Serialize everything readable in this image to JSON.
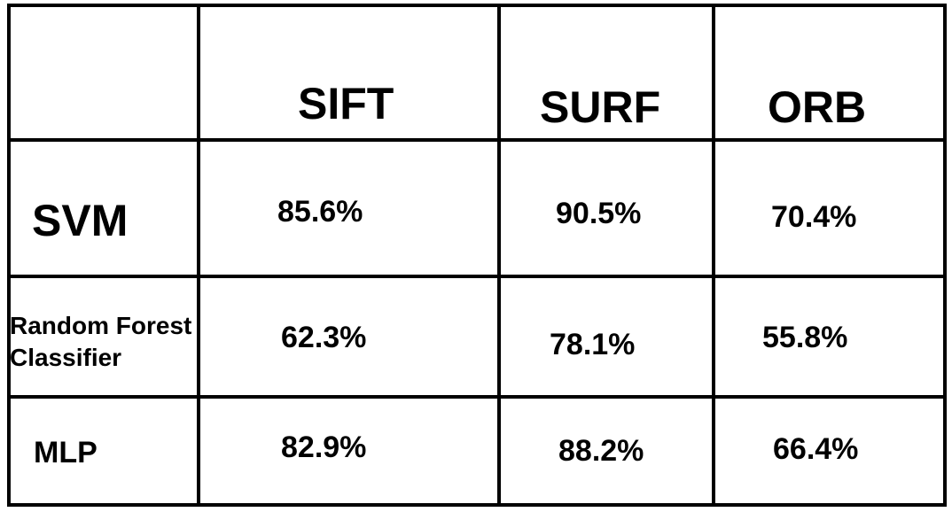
{
  "chart_data": {
    "type": "table",
    "columns": [
      "SIFT",
      "SURF",
      "ORB"
    ],
    "rows": [
      {
        "label": "SVM",
        "values": [
          "85.6%",
          "90.5%",
          "70.4%"
        ]
      },
      {
        "label": "Random Forest Classifier",
        "values": [
          "62.3%",
          "78.1%",
          "55.8%"
        ]
      },
      {
        "label": "MLP",
        "values": [
          "82.9%",
          "88.2%",
          "66.4%"
        ]
      }
    ]
  }
}
